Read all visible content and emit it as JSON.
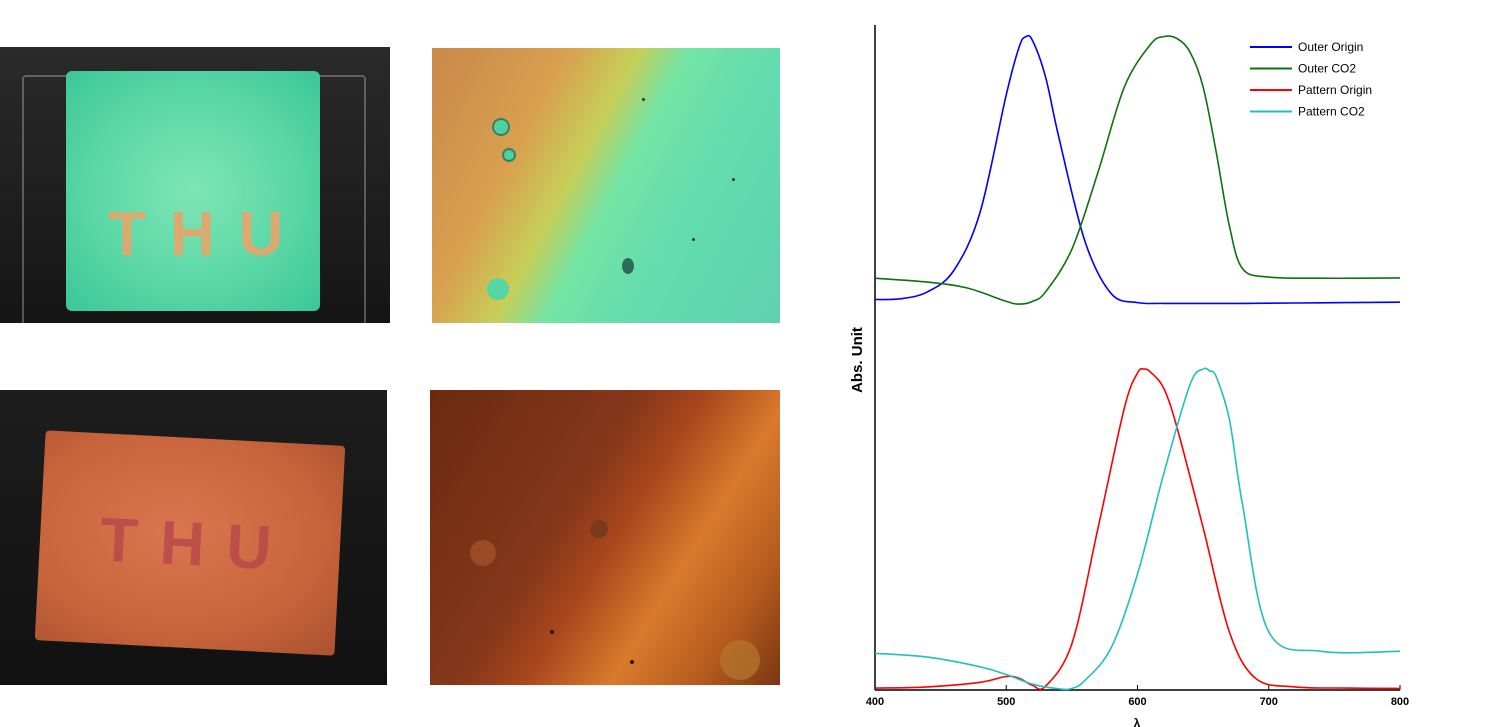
{
  "photos": [
    {
      "name": "film-photo-green",
      "letters": "THU"
    },
    {
      "name": "micrograph-green"
    },
    {
      "name": "film-photo-red",
      "letters": "THU"
    },
    {
      "name": "micrograph-red"
    }
  ],
  "chart_data": {
    "type": "line",
    "title": "",
    "xlabel": "λ",
    "ylabel": "Abs. Unit",
    "xlim": [
      400,
      800
    ],
    "xticks": [
      400,
      500,
      600,
      700,
      800
    ],
    "grid": false,
    "legend_position": "top-right",
    "colors": {
      "Outer Origin": "#0000ff",
      "Outer CO2": "#107010",
      "Pattern Origin": "#ff0000",
      "Pattern CO2": "#20c0c0"
    },
    "series": [
      {
        "name": "Outer Origin",
        "x": [
          400,
          420,
          440,
          460,
          480,
          500,
          510,
          515,
          520,
          530,
          540,
          560,
          580,
          600,
          620,
          640,
          680,
          720,
          760,
          800
        ],
        "y": [
          1.01,
          1.012,
          1.03,
          1.085,
          1.235,
          1.54,
          1.665,
          1.69,
          1.68,
          1.585,
          1.43,
          1.16,
          1.025,
          1.002,
          1.0,
          1.0,
          1.0,
          1.001,
          1.002,
          1.003
        ]
      },
      {
        "name": "Outer CO2",
        "x": [
          400,
          440,
          470,
          500,
          510,
          520,
          530,
          550,
          570,
          590,
          610,
          620,
          630,
          640,
          650,
          660,
          670,
          680,
          700,
          740,
          800
        ],
        "y": [
          1.065,
          1.055,
          1.04,
          1.005,
          0.998,
          1.005,
          1.03,
          1.14,
          1.34,
          1.56,
          1.67,
          1.69,
          1.685,
          1.65,
          1.56,
          1.39,
          1.2,
          1.09,
          1.068,
          1.065,
          1.066
        ]
      },
      {
        "name": "Pattern Origin",
        "x": [
          400,
          440,
          480,
          500,
          510,
          520,
          530,
          550,
          570,
          590,
          600,
          605,
          610,
          620,
          630,
          650,
          670,
          690,
          720,
          760,
          800
        ],
        "y": [
          0.005,
          0.008,
          0.02,
          0.035,
          0.03,
          0.012,
          0.01,
          0.12,
          0.42,
          0.73,
          0.82,
          0.83,
          0.822,
          0.78,
          0.68,
          0.42,
          0.15,
          0.03,
          0.008,
          0.005,
          0.004
        ]
      },
      {
        "name": "Pattern CO2",
        "x": [
          400,
          440,
          480,
          500,
          520,
          540,
          550,
          560,
          580,
          600,
          620,
          640,
          650,
          655,
          660,
          670,
          680,
          700,
          740,
          800
        ],
        "y": [
          0.095,
          0.085,
          0.06,
          0.04,
          0.015,
          0.003,
          0.004,
          0.025,
          0.11,
          0.3,
          0.56,
          0.79,
          0.83,
          0.825,
          0.81,
          0.7,
          0.48,
          0.15,
          0.1,
          0.1
        ]
      }
    ]
  }
}
